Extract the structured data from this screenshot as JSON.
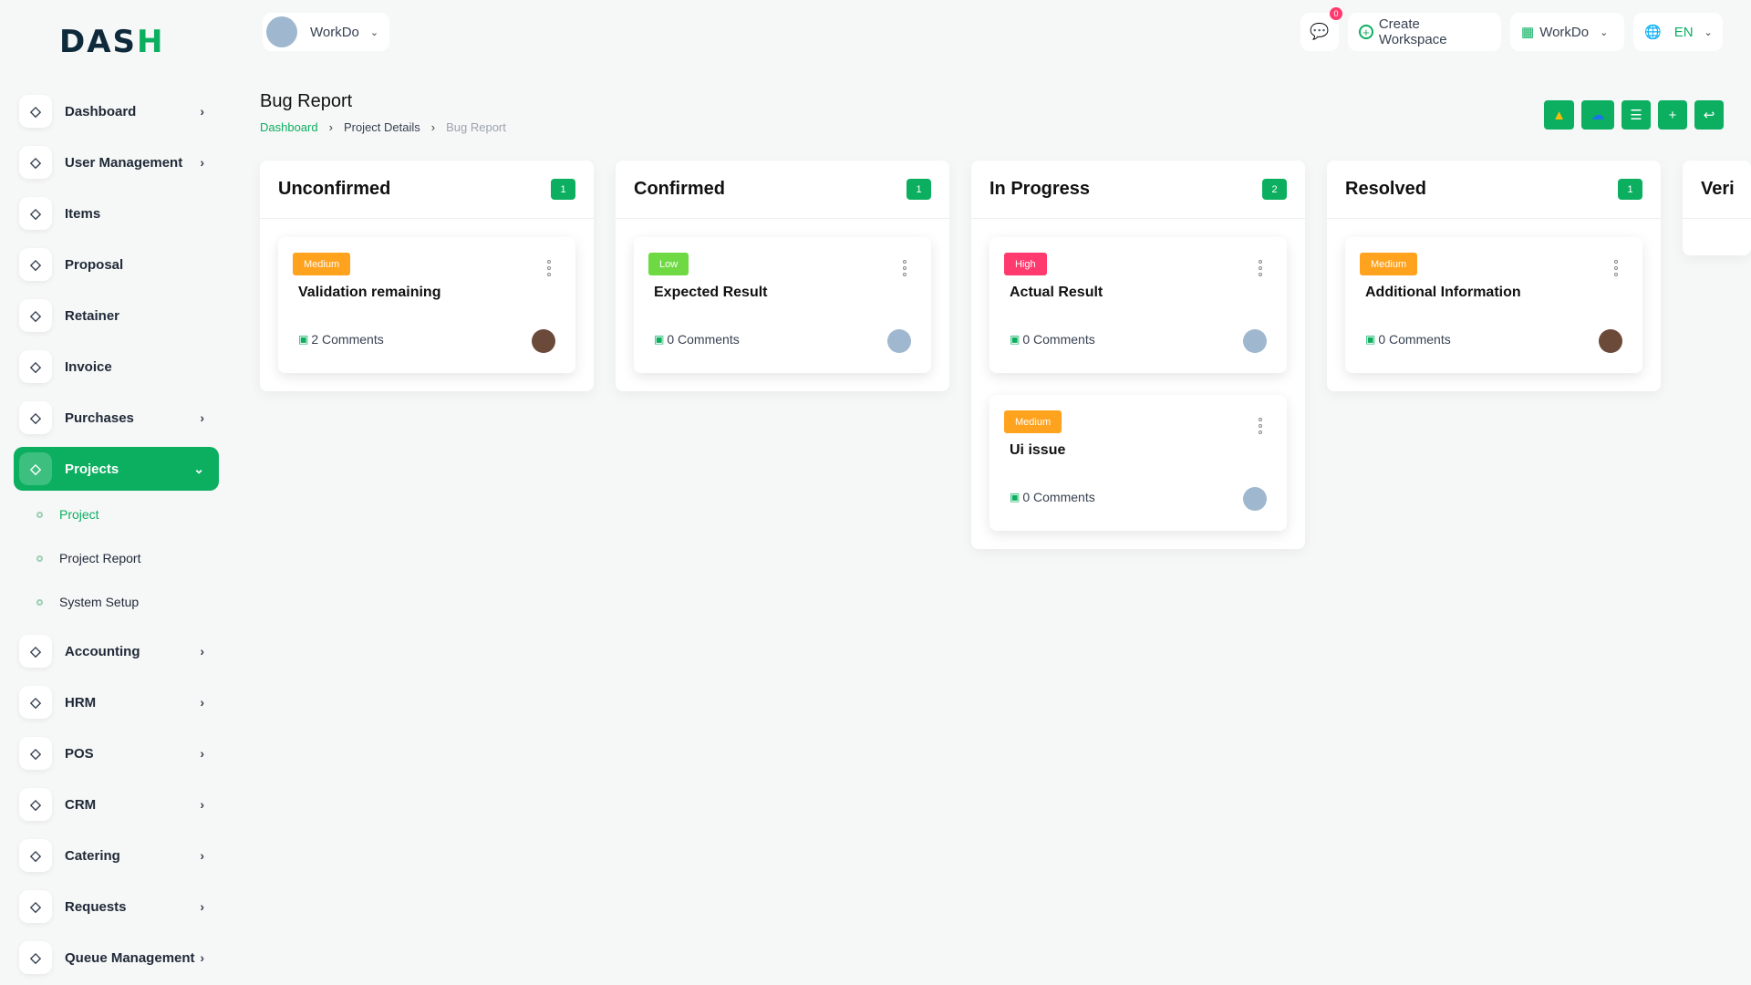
{
  "logo": {
    "text": "DASH"
  },
  "header": {
    "workspace_switch": "WorkDo",
    "notification_count": "0",
    "create_workspace": "Create Workspace",
    "workspace_menu": "WorkDo",
    "language": "EN"
  },
  "sidebar": {
    "items": [
      {
        "label": "Dashboard",
        "icon": "home-icon",
        "chevron": true
      },
      {
        "label": "User Management",
        "icon": "users-icon",
        "chevron": true
      },
      {
        "label": "Items",
        "icon": "cart-icon",
        "chevron": false
      },
      {
        "label": "Proposal",
        "icon": "proposal-icon",
        "chevron": false
      },
      {
        "label": "Retainer",
        "icon": "retainer-icon",
        "chevron": false
      },
      {
        "label": "Invoice",
        "icon": "invoice-icon",
        "chevron": false
      },
      {
        "label": "Purchases",
        "icon": "cart-icon",
        "chevron": true
      },
      {
        "label": "Projects",
        "icon": "check-square-icon",
        "chevron": true,
        "active": true
      }
    ],
    "sub_items": [
      {
        "label": "Project",
        "active": true
      },
      {
        "label": "Project Report"
      },
      {
        "label": "System Setup"
      }
    ],
    "items2": [
      {
        "label": "Accounting",
        "icon": "grid-icon"
      },
      {
        "label": "HRM",
        "icon": "hrm-icon"
      },
      {
        "label": "POS",
        "icon": "pos-grid-icon"
      },
      {
        "label": "CRM",
        "icon": "crm-icon"
      },
      {
        "label": "Catering",
        "icon": "catering-icon"
      },
      {
        "label": "Requests",
        "icon": "user-plus-icon"
      },
      {
        "label": "Queue Management",
        "icon": "phone-icon"
      }
    ]
  },
  "page": {
    "title": "Bug Report",
    "breadcrumb": [
      "Dashboard",
      "Project Details",
      "Bug Report"
    ],
    "actions": [
      "google-drive-icon",
      "onedrive-icon",
      "list-icon",
      "plus-icon",
      "back-icon"
    ]
  },
  "colors": {
    "accent": "#0caf60",
    "medium": "#ffa21d",
    "low": "#6fd943",
    "high": "#ff3a6e"
  },
  "columns": [
    {
      "title": "Unconfirmed",
      "count": "1",
      "cards": [
        {
          "priority": "Medium",
          "title": "Validation remaining",
          "comments": "2 Comments",
          "avatar": "person"
        }
      ]
    },
    {
      "title": "Confirmed",
      "count": "1",
      "cards": [
        {
          "priority": "Low",
          "title": "Expected Result",
          "comments": "0 Comments",
          "avatar": "building"
        }
      ]
    },
    {
      "title": "In Progress",
      "count": "2",
      "cards": [
        {
          "priority": "High",
          "title": "Actual Result",
          "comments": "0 Comments",
          "avatar": "building"
        },
        {
          "priority": "Medium",
          "title": "Ui issue",
          "comments": "0 Comments",
          "avatar": "building"
        }
      ]
    },
    {
      "title": "Resolved",
      "count": "1",
      "cards": [
        {
          "priority": "Medium",
          "title": "Additional Information",
          "comments": "0 Comments",
          "avatar": "person"
        }
      ]
    },
    {
      "title": "Veri",
      "count": "",
      "cards": []
    }
  ]
}
